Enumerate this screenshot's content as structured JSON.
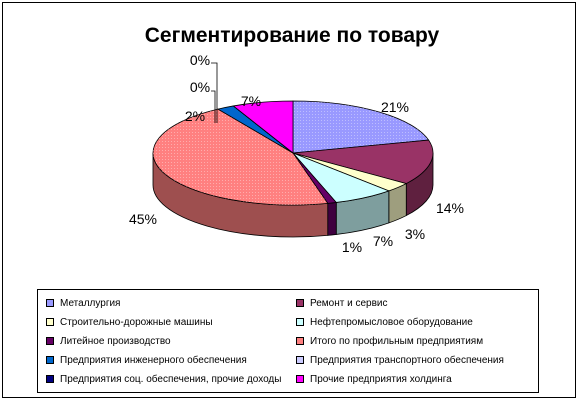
{
  "chart_data": {
    "type": "pie",
    "title": "Сегментирование по товару",
    "three_d": true,
    "legend_position": "bottom",
    "slices": [
      {
        "name": "Металлургия",
        "value": 21,
        "label": "21%",
        "color": "#9999ff"
      },
      {
        "name": "Ремонт и сервис",
        "value": 14,
        "label": "14%",
        "color": "#993366"
      },
      {
        "name": "Строительно-дорожные машины",
        "value": 3,
        "label": "3%",
        "color": "#ffffcc"
      },
      {
        "name": "Нефтепромысловое оборудование",
        "value": 7,
        "label": "7%",
        "color": "#ccffff"
      },
      {
        "name": "Литейное производство",
        "value": 1,
        "label": "1%",
        "color": "#660066"
      },
      {
        "name": "Итого по профильным предприятиям",
        "value": 45,
        "label": "45%",
        "color": "#ff8080"
      },
      {
        "name": "Предприятия инженерного обеспечения",
        "value": 2,
        "label": "2%",
        "color": "#0066cc"
      },
      {
        "name": "Предприятия транспортного обеспечения",
        "value": 0,
        "label": "0%",
        "color": "#ccccff"
      },
      {
        "name": "Предприятия соц. обеспечения, прочие доходы",
        "value": 0,
        "label": "0%",
        "color": "#000080"
      },
      {
        "name": "Прочие предприятия холдинга",
        "value": 7,
        "label": "7%",
        "color": "#ff00ff"
      }
    ]
  },
  "legend": {
    "items": [
      "Металлургия",
      "Ремонт и сервис",
      "Строительно-дорожные машины",
      "Нефтепромысловое оборудование",
      "Литейное производство",
      "Итого по профильным предприятиям",
      "Предприятия инженерного обеспечения",
      "Предприятия транспортного обеспечения",
      "Предприятия соц. обеспечения, прочие доходы",
      "Прочие предприятия холдинга"
    ]
  }
}
